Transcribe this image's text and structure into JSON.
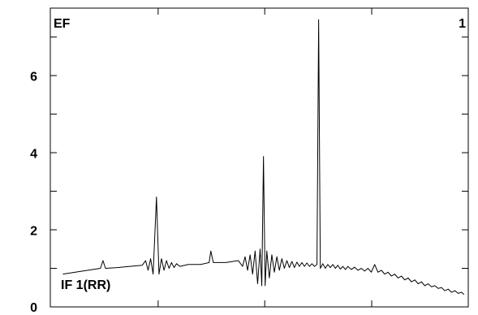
{
  "chart_data": {
    "type": "line",
    "annotations": [
      "EF",
      "1",
      "IF 1(RR)"
    ],
    "xlim": [
      0,
      100
    ],
    "xticks": [
      25.8,
      51.3,
      76.9
    ],
    "ylim": [
      0,
      7.75
    ],
    "yticks": [
      0,
      2,
      4,
      6
    ],
    "yminorticks": [
      1,
      3,
      5,
      7
    ],
    "x": [
      3,
      6,
      9,
      12,
      12.6,
      13.2,
      16,
      19,
      22,
      22.8,
      23.4,
      24,
      24.6,
      25.4,
      26.0,
      26.6,
      27.2,
      27.8,
      28.4,
      29,
      29.6,
      30.2,
      31,
      33,
      36,
      38,
      38.4,
      39,
      42,
      45,
      46,
      46.6,
      47.2,
      47.8,
      48.4,
      49,
      49.6,
      50.2,
      50.6,
      51,
      51.4,
      51.8,
      52.4,
      53,
      53.6,
      54.2,
      54.8,
      55.4,
      56,
      56.6,
      57.2,
      57.8,
      58.4,
      59,
      59.6,
      60.2,
      60.8,
      61.4,
      62,
      62.6,
      63.2,
      63.8,
      64.2,
      64.6,
      65.2,
      65.8,
      66.4,
      67,
      67.6,
      68.2,
      68.8,
      69.4,
      70,
      70.6,
      71.2,
      72,
      72.8,
      73.6,
      74.4,
      75.2,
      76,
      76.8,
      77.6,
      78.4,
      79.2,
      80,
      80.8,
      81.6,
      82.4,
      83.2,
      84,
      84.8,
      85.6,
      86.4,
      87.2,
      88,
      88.8,
      89.6,
      90.4,
      91.2,
      92,
      92.8,
      93.6,
      94.4,
      95.2,
      96,
      96.8,
      97.6,
      98.4,
      99
    ],
    "series": [
      {
        "color": "#000000",
        "values": [
          0.85,
          0.9,
          0.95,
          1.0,
          1.2,
          1.0,
          1.02,
          1.05,
          1.08,
          1.2,
          0.95,
          1.25,
          0.85,
          2.85,
          0.85,
          1.25,
          0.95,
          1.2,
          1.0,
          1.15,
          1.02,
          1.12,
          1.05,
          1.1,
          1.1,
          1.15,
          1.45,
          1.15,
          1.15,
          1.2,
          1.05,
          1.3,
          0.95,
          1.35,
          0.85,
          1.45,
          0.6,
          1.5,
          0.55,
          3.9,
          0.55,
          1.45,
          0.75,
          1.35,
          0.9,
          1.3,
          0.95,
          1.25,
          1.0,
          1.2,
          1.02,
          1.18,
          1.02,
          1.16,
          1.05,
          1.15,
          1.05,
          1.14,
          1.05,
          1.12,
          1.05,
          1.1,
          7.45,
          1.0,
          1.12,
          1.0,
          1.1,
          1.02,
          1.1,
          1.0,
          1.08,
          0.98,
          1.05,
          0.97,
          1.05,
          0.97,
          1.03,
          0.95,
          1.0,
          0.93,
          1.0,
          0.9,
          1.1,
          0.9,
          0.95,
          0.85,
          0.9,
          0.8,
          0.85,
          0.75,
          0.8,
          0.7,
          0.75,
          0.65,
          0.7,
          0.6,
          0.65,
          0.55,
          0.6,
          0.52,
          0.55,
          0.48,
          0.5,
          0.42,
          0.46,
          0.38,
          0.42,
          0.35,
          0.38,
          0.32
        ]
      }
    ]
  }
}
